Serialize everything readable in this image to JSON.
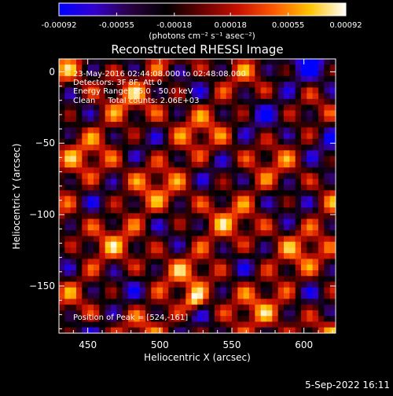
{
  "colorbar": {
    "tick_labels": [
      "-0.00092",
      "-0.00055",
      "-0.00018",
      "0.00018",
      "0.00055",
      "0.00092"
    ],
    "tick_values": [
      -0.00092,
      -0.00055,
      -0.00018,
      0.00018,
      0.00055,
      0.00092
    ],
    "range": [
      -0.00092,
      0.00092
    ],
    "unit_label": "(photons cm⁻² s⁻¹ asec⁻²)",
    "palette": [
      "#0000ff",
      "#3300cc",
      "#2a0040",
      "#000000",
      "#6a0000",
      "#c81000",
      "#ff5a00",
      "#ffc400",
      "#ffffff"
    ]
  },
  "chart_data": {
    "type": "heatmap",
    "title": "Reconstructed RHESSI Image",
    "xlabel": "Heliocentric X (arcsec)",
    "ylabel": "Heliocentric Y (arcsec)",
    "xlim": [
      430,
      622
    ],
    "ylim": [
      -183,
      9
    ],
    "x_ticks": [
      450,
      500,
      550,
      600
    ],
    "y_ticks": [
      0,
      -50,
      -100,
      -150
    ],
    "x_tick_labels": [
      "450",
      "500",
      "550",
      "600"
    ],
    "y_tick_labels": [
      "0",
      "−50",
      "−100",
      "−150"
    ],
    "grid_cells": 48,
    "value_range": [
      -0.00092,
      0.00092
    ],
    "peak_position": [
      524,
      -161
    ],
    "annotations": [
      "23-May-2016 02:44:08.000 to 02:48:08.000",
      "Detectors: 3F 8F, Att 0",
      "Energy Range: 25.0 - 50.0 keV",
      "Clean     Total counts: 2.06E+03"
    ],
    "peak_label": "Position of Peak = [524,-161]"
  },
  "footer": {
    "date": "5-Sep-2022 16:11"
  }
}
